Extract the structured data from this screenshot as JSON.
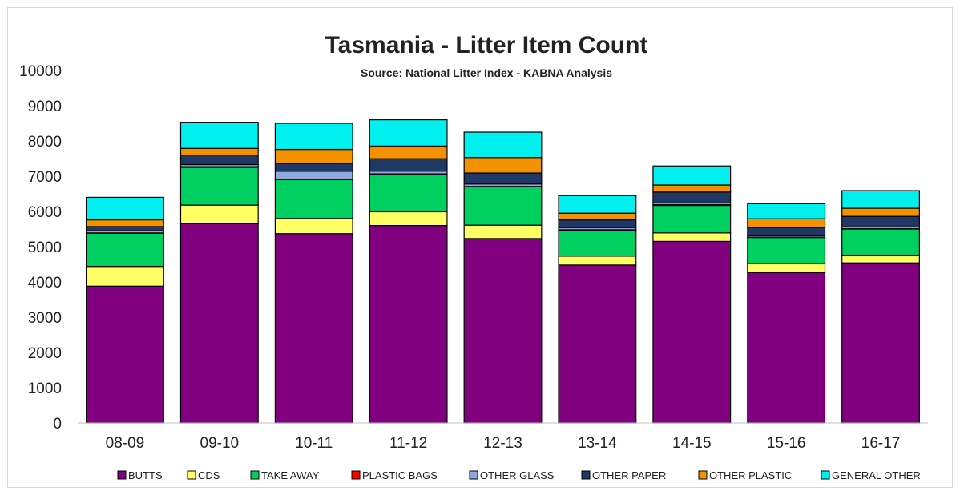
{
  "chart_data": {
    "type": "bar",
    "stacked": true,
    "title": "Tasmania - Litter Item Count",
    "subtitle": "Source: National Litter Index - KABNA Analysis",
    "ylim": [
      0,
      10000
    ],
    "yticks": [
      0,
      1000,
      2000,
      3000,
      4000,
      5000,
      6000,
      7000,
      8000,
      9000,
      10000
    ],
    "grid": false,
    "legend_position": "bottom",
    "categories": [
      "08-09",
      "09-10",
      "10-11",
      "11-12",
      "12-13",
      "13-14",
      "14-15",
      "15-16",
      "16-17"
    ],
    "series": [
      {
        "name": "BUTTS",
        "color": "#800080",
        "values": [
          3880,
          5650,
          5370,
          5600,
          5230,
          4480,
          5150,
          4270,
          4540
        ]
      },
      {
        "name": "CDS",
        "color": "#ffff66",
        "values": [
          560,
          530,
          430,
          390,
          380,
          250,
          240,
          250,
          220
        ]
      },
      {
        "name": "TAKE AWAY",
        "color": "#00d060",
        "values": [
          940,
          1070,
          1100,
          1060,
          1090,
          740,
          780,
          740,
          740
        ]
      },
      {
        "name": "PLASTIC BAGS",
        "color": "#ff0000",
        "values": [
          10,
          20,
          10,
          15,
          10,
          10,
          20,
          10,
          10
        ]
      },
      {
        "name": "OTHER GLASS",
        "color": "#8ea9db",
        "values": [
          60,
          60,
          230,
          80,
          70,
          60,
          50,
          40,
          50
        ]
      },
      {
        "name": "OTHER PAPER",
        "color": "#203864",
        "values": [
          120,
          270,
          220,
          350,
          310,
          220,
          310,
          230,
          300
        ]
      },
      {
        "name": "OTHER PLASTIC",
        "color": "#f39200",
        "values": [
          190,
          190,
          400,
          360,
          440,
          190,
          200,
          250,
          230
        ]
      },
      {
        "name": "GENERAL OTHER",
        "color": "#00f0f0",
        "values": [
          640,
          740,
          740,
          745,
          720,
          500,
          540,
          430,
          500
        ]
      }
    ]
  }
}
